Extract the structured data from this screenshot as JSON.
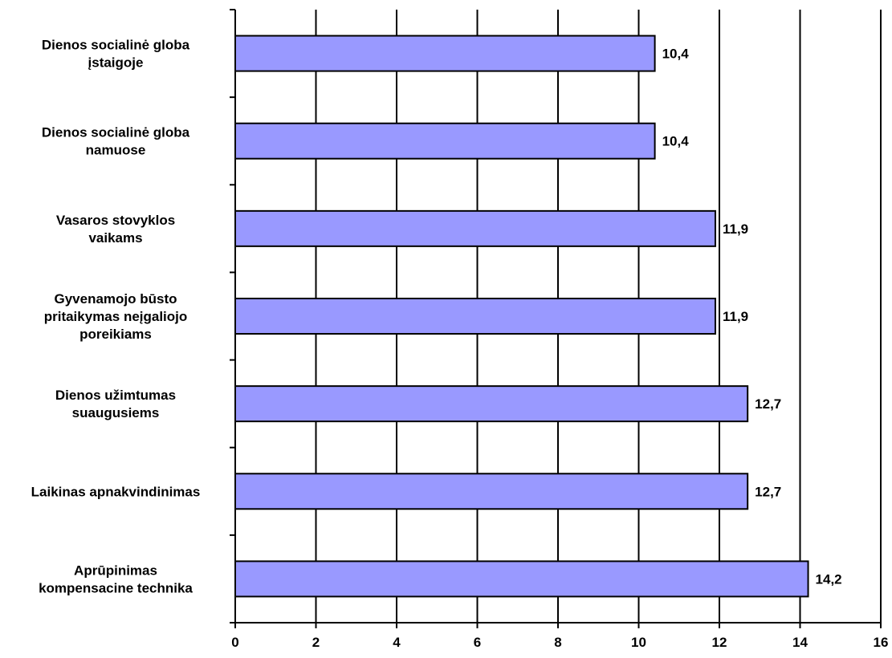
{
  "chart_data": {
    "type": "bar",
    "orientation": "horizontal",
    "categories": [
      [
        "Dienos socialinė globa",
        "įstaigoje"
      ],
      [
        "Dienos socialinė globa",
        "namuose"
      ],
      [
        "Vasaros stovyklos",
        "vaikams"
      ],
      [
        "Gyvenamojo būsto",
        "pritaikymas neįgaliojo",
        "poreikiams"
      ],
      [
        "Dienos užimtumas",
        "suaugusiems"
      ],
      [
        "Laikinas apnakvindinimas"
      ],
      [
        "Aprūpinimas",
        "kompensacine technika"
      ]
    ],
    "values": [
      10.4,
      10.4,
      11.9,
      11.9,
      12.7,
      12.7,
      14.2
    ],
    "value_labels": [
      "10,4",
      "10,4",
      "11,9",
      "11,9",
      "12,7",
      "12,7",
      "14,2"
    ],
    "xlim": [
      0,
      16
    ],
    "xticks": [
      0,
      2,
      4,
      6,
      8,
      10,
      12,
      14,
      16
    ],
    "grid": "vertical",
    "bar_color": "#9999ff",
    "bar_border": "#000000",
    "title": "",
    "xlabel": "",
    "ylabel": ""
  }
}
